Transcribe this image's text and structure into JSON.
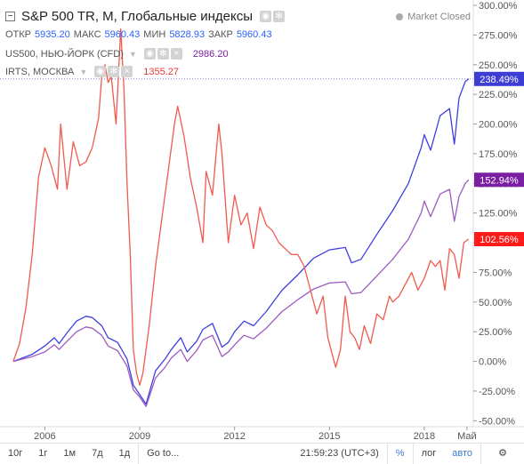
{
  "header": {
    "title": "S&P 500 TR, M, Глобальные индексы",
    "market_status": "Market Closed",
    "ohlc": [
      {
        "label": "ОТКР",
        "value": "5935.20"
      },
      {
        "label": "МАКС",
        "value": "5960.43"
      },
      {
        "label": "МИН",
        "value": "5828.93"
      },
      {
        "label": "ЗАКР",
        "value": "5960.43"
      }
    ],
    "compare": [
      {
        "name": "US500, НЬЮ-ЙОРК (CFD)",
        "value": "2986.20",
        "color": "#7b1fa2"
      },
      {
        "name": "IRTS, МОСКВА",
        "value": "1355.27",
        "color": "#e53935"
      }
    ]
  },
  "colors": {
    "main": "#3f3fe0",
    "us500": "#9c5cc0",
    "irts": "#f05a4f",
    "axis_text": "#555555",
    "ohlc_value": "#2962ff"
  },
  "toolbar": {
    "ranges": [
      "10г",
      "1г",
      "1м",
      "7д",
      "1д"
    ],
    "goto": "Go to...",
    "time": "21:59:23",
    "tz": "(UTC+3)",
    "pct": "%",
    "log": "лог",
    "auto": "авто"
  },
  "chart_data": {
    "type": "line",
    "yunit": "percent",
    "ylim": [
      -55,
      300
    ],
    "xlim": [
      2004.75,
      2019.55
    ],
    "yticks": [
      "300.00%",
      "275.00%",
      "250.00%",
      "225.00%",
      "200.00%",
      "175.00%",
      "150.00%",
      "125.00%",
      "100.00%",
      "75.00%",
      "50.00%",
      "25.00%",
      "0.00%",
      "-25.00%",
      "-50.00%"
    ],
    "ytick_values": [
      300,
      275,
      250,
      225,
      200,
      175,
      150,
      125,
      100,
      75,
      50,
      25,
      0,
      -25,
      -50
    ],
    "xticks": [
      "2006",
      "2009",
      "2012",
      "2015",
      "2018",
      "Май"
    ],
    "xtick_values": [
      2006,
      2009,
      2012,
      2015,
      2018,
      2019.35
    ],
    "series": [
      {
        "name": "S&P 500 TR",
        "color": "#3f3fe0",
        "last_label": "238.49%",
        "x": [
          2005.0,
          2005.3,
          2005.6,
          2006.0,
          2006.3,
          2006.45,
          2006.7,
          2007.0,
          2007.3,
          2007.5,
          2007.8,
          2008.0,
          2008.3,
          2008.6,
          2008.8,
          2009.0,
          2009.2,
          2009.5,
          2009.8,
          2010.0,
          2010.3,
          2010.5,
          2010.8,
          2011.0,
          2011.3,
          2011.6,
          2011.8,
          2012.0,
          2012.3,
          2012.6,
          2013.0,
          2013.5,
          2014.0,
          2014.5,
          2015.0,
          2015.5,
          2015.7,
          2016.0,
          2016.5,
          2017.0,
          2017.5,
          2017.9,
          2018.0,
          2018.2,
          2018.5,
          2018.8,
          2018.95,
          2019.1,
          2019.3,
          2019.4
        ],
        "values": [
          0,
          3,
          6,
          13,
          20,
          15,
          24,
          34,
          38,
          37,
          30,
          20,
          16,
          2,
          -20,
          -28,
          -36,
          -8,
          2,
          10,
          20,
          8,
          17,
          27,
          32,
          12,
          16,
          25,
          34,
          30,
          42,
          60,
          73,
          87,
          94,
          96,
          83,
          86,
          107,
          127,
          150,
          180,
          191,
          178,
          207,
          213,
          183,
          222,
          236,
          238
        ]
      },
      {
        "name": "US500, НЬЮ-ЙОРК (CFD)",
        "color": "#9c5cc0",
        "last_label": "152.94%",
        "x": [
          2005.0,
          2005.3,
          2005.6,
          2006.0,
          2006.3,
          2006.45,
          2006.7,
          2007.0,
          2007.3,
          2007.5,
          2007.8,
          2008.0,
          2008.3,
          2008.6,
          2008.8,
          2009.0,
          2009.2,
          2009.5,
          2009.8,
          2010.0,
          2010.3,
          2010.5,
          2010.8,
          2011.0,
          2011.3,
          2011.6,
          2011.8,
          2012.0,
          2012.3,
          2012.6,
          2013.0,
          2013.5,
          2014.0,
          2014.5,
          2015.0,
          2015.5,
          2015.7,
          2016.0,
          2016.5,
          2017.0,
          2017.5,
          2017.9,
          2018.0,
          2018.2,
          2018.5,
          2018.8,
          2018.95,
          2019.1,
          2019.3,
          2019.4
        ],
        "values": [
          0,
          2,
          4,
          8,
          14,
          10,
          17,
          25,
          29,
          28,
          22,
          13,
          9,
          -4,
          -24,
          -30,
          -38,
          -14,
          -5,
          3,
          10,
          0,
          9,
          18,
          22,
          4,
          8,
          14,
          22,
          19,
          28,
          42,
          52,
          61,
          66,
          67,
          57,
          58,
          72,
          86,
          103,
          125,
          135,
          122,
          141,
          145,
          118,
          139,
          150,
          153
        ]
      },
      {
        "name": "IRTS, МОСКВА",
        "color": "#f05a4f",
        "last_label": "102.56%",
        "x": [
          2005.0,
          2005.2,
          2005.4,
          2005.6,
          2005.8,
          2006.0,
          2006.2,
          2006.4,
          2006.5,
          2006.7,
          2006.9,
          2007.1,
          2007.3,
          2007.5,
          2007.7,
          2007.8,
          2007.9,
          2008.0,
          2008.1,
          2008.25,
          2008.4,
          2008.5,
          2008.6,
          2008.7,
          2008.8,
          2008.9,
          2009.0,
          2009.1,
          2009.3,
          2009.5,
          2009.7,
          2009.9,
          2010.1,
          2010.2,
          2010.4,
          2010.6,
          2010.8,
          2011.0,
          2011.1,
          2011.3,
          2011.5,
          2011.6,
          2011.8,
          2012.0,
          2012.2,
          2012.4,
          2012.6,
          2012.8,
          2013.0,
          2013.2,
          2013.4,
          2013.6,
          2013.8,
          2014.0,
          2014.2,
          2014.4,
          2014.6,
          2014.8,
          2014.95,
          2015.1,
          2015.2,
          2015.35,
          2015.5,
          2015.65,
          2015.8,
          2015.95,
          2016.1,
          2016.3,
          2016.5,
          2016.7,
          2016.9,
          2017.0,
          2017.2,
          2017.4,
          2017.6,
          2017.8,
          2018.0,
          2018.2,
          2018.35,
          2018.5,
          2018.65,
          2018.8,
          2018.95,
          2019.1,
          2019.25,
          2019.4
        ],
        "values": [
          0,
          15,
          45,
          90,
          155,
          180,
          165,
          145,
          200,
          145,
          185,
          165,
          168,
          180,
          205,
          240,
          250,
          235,
          240,
          200,
          280,
          230,
          150,
          90,
          10,
          -10,
          -20,
          -10,
          30,
          80,
          120,
          160,
          200,
          215,
          190,
          155,
          130,
          100,
          160,
          140,
          200,
          175,
          100,
          140,
          115,
          125,
          95,
          130,
          115,
          110,
          100,
          95,
          90,
          90,
          80,
          60,
          40,
          55,
          20,
          5,
          -5,
          10,
          55,
          25,
          20,
          10,
          30,
          15,
          40,
          35,
          55,
          50,
          55,
          65,
          75,
          60,
          70,
          85,
          80,
          85,
          60,
          95,
          90,
          70,
          100,
          103
        ]
      }
    ]
  }
}
